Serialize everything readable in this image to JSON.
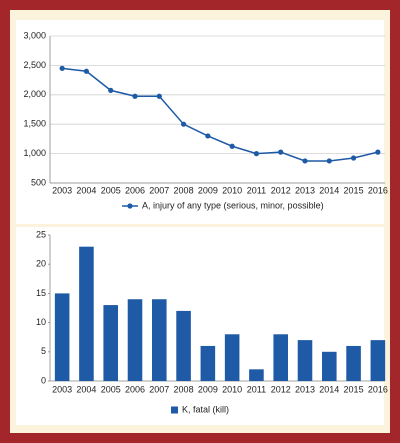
{
  "chart_data": [
    {
      "type": "line",
      "categories": [
        "2003",
        "2004",
        "2005",
        "2006",
        "2007",
        "2008",
        "2009",
        "2010",
        "2011",
        "2012",
        "2013",
        "2014",
        "2015",
        "2016"
      ],
      "series": [
        {
          "name": "A, injury of any type (serious, minor, possible)",
          "color": "#1f5aa6",
          "values": [
            2450,
            2400,
            2075,
            1975,
            1975,
            1500,
            1300,
            1125,
            1000,
            1025,
            875,
            875,
            925,
            1025
          ]
        }
      ],
      "ylim": [
        500,
        3000
      ],
      "yticks": [
        500,
        {
          "value": 1000,
          "label": "1,000"
        },
        {
          "value": 1500,
          "label": "1,500"
        },
        {
          "value": 2000,
          "label": "2,000"
        },
        {
          "value": 2500,
          "label": "2,500"
        },
        {
          "value": 3000,
          "label": "3,000"
        }
      ],
      "grid": true
    },
    {
      "type": "bar",
      "categories": [
        "2003",
        "2004",
        "2005",
        "2006",
        "2007",
        "2008",
        "2009",
        "2010",
        "2011",
        "2012",
        "2013",
        "2014",
        "2015",
        "2016"
      ],
      "series": [
        {
          "name": "K, fatal (kill)",
          "color": "#1f5aa6",
          "values": [
            15,
            23,
            13,
            14,
            14,
            12,
            6,
            8,
            2,
            8,
            7,
            5,
            6,
            7
          ]
        }
      ],
      "ylim": [
        0,
        25
      ],
      "yticks": [
        0,
        5,
        10,
        15,
        20,
        25
      ],
      "grid": false
    }
  ]
}
